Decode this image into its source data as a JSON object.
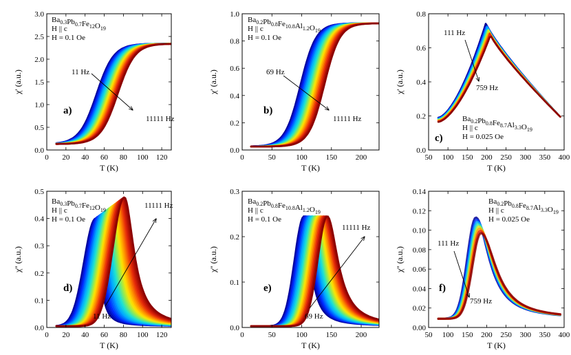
{
  "figure": {
    "description_panels": [
      "a",
      "b",
      "c",
      "d",
      "e",
      "f"
    ]
  },
  "chart_data": [
    {
      "id": "a",
      "type": "line",
      "panel_label": "a)",
      "legend": [
        {
          "main": "Ba",
          "sub": "0.3"
        },
        {
          "main": "Pb",
          "sub": "0.7"
        },
        {
          "main": "Fe",
          "sub": "12"
        },
        {
          "main": "O",
          "sub": "19"
        }
      ],
      "legend_lines": [
        "H || c",
        "H = 0.1 Oe"
      ],
      "xlabel": "T (K)",
      "ylabel": "χ' (a.u.)",
      "xlim": [
        0,
        130
      ],
      "ylim": [
        0,
        3.0
      ],
      "xticks": [
        0,
        20,
        40,
        60,
        80,
        100,
        120
      ],
      "yticks": [
        0.0,
        0.5,
        1.0,
        1.5,
        2.0,
        2.5,
        3.0
      ],
      "ytick_labels": [
        "0.0",
        "0.5",
        "1.0",
        "1.5",
        "2.0",
        "2.5",
        "3.0"
      ],
      "freq_low_label": "11 Hz",
      "freq_high_label": "11111 Hz",
      "curve_model": {
        "kind": "sigmoid",
        "x_start": 10,
        "x_end": 130,
        "base": 0.13,
        "top": 2.34,
        "center_low": 52,
        "center_high": 74,
        "width": 9
      },
      "n_series": 26
    },
    {
      "id": "b",
      "type": "line",
      "panel_label": "b)",
      "legend": [
        {
          "main": "Ba",
          "sub": "0.2"
        },
        {
          "main": "Pb",
          "sub": "0.8"
        },
        {
          "main": "Fe",
          "sub": "10.8"
        },
        {
          "main": "Al",
          "sub": "1.2"
        },
        {
          "main": "O",
          "sub": "19"
        }
      ],
      "legend_lines": [
        "H || c",
        "H = 0.1 Oe"
      ],
      "xlabel": "T (K)",
      "ylabel": "χ' (a.u.)",
      "xlim": [
        0,
        230
      ],
      "ylim": [
        0,
        1.0
      ],
      "xticks": [
        0,
        50,
        100,
        150,
        200
      ],
      "yticks": [
        0.0,
        0.2,
        0.4,
        0.6,
        0.8,
        1.0
      ],
      "ytick_labels": [
        "0.0",
        "0.2",
        "0.4",
        "0.6",
        "0.8",
        "1.0"
      ],
      "freq_low_label": "69 Hz",
      "freq_high_label": "11111 Hz",
      "curve_model": {
        "kind": "sigmoid",
        "x_start": 15,
        "x_end": 230,
        "base": 0.025,
        "top": 0.93,
        "center_low": 98,
        "center_high": 138,
        "width": 13
      },
      "n_series": 26
    },
    {
      "id": "c",
      "type": "line",
      "panel_label": "c)",
      "legend": [
        {
          "main": "Ba",
          "sub": "0.2"
        },
        {
          "main": "Pb",
          "sub": "0.8"
        },
        {
          "main": "Fe",
          "sub": "8.7"
        },
        {
          "main": "Al",
          "sub": "3.3"
        },
        {
          "main": "O",
          "sub": "19"
        }
      ],
      "legend_lines": [
        "H || c",
        "H = 0.025 Oe"
      ],
      "xlabel": "T (K)",
      "ylabel": "χ' (a.u.)",
      "xlim": [
        50,
        400
      ],
      "ylim": [
        0,
        0.8
      ],
      "xticks": [
        50,
        100,
        150,
        200,
        250,
        300,
        350,
        400
      ],
      "yticks": [
        0.0,
        0.2,
        0.4,
        0.6,
        0.8
      ],
      "ytick_labels": [
        "0.0",
        "0.2",
        "0.4",
        "0.6",
        "0.8"
      ],
      "freq_low_label": "111 Hz",
      "freq_high_label": "759 Hz",
      "curve_model": {
        "kind": "cusp",
        "x_start": 75,
        "x_end": 390,
        "peak_x_low": 198,
        "peak_x_high": 210,
        "peak_low": 0.745,
        "peak_high": 0.675,
        "left_low": 0.19,
        "left_high": 0.165,
        "right_end": 0.195
      },
      "n_series": 8
    },
    {
      "id": "d",
      "type": "line",
      "panel_label": "d)",
      "legend": [
        {
          "main": "Ba",
          "sub": "0.3"
        },
        {
          "main": "Pb",
          "sub": "0.7"
        },
        {
          "main": "Fe",
          "sub": "12"
        },
        {
          "main": "O",
          "sub": "19"
        }
      ],
      "legend_lines": [
        "H || c",
        "H = 0.1 Oe"
      ],
      "xlabel": "T (K)",
      "ylabel": "χ'' (a.u.)",
      "xlim": [
        0,
        130
      ],
      "ylim": [
        0,
        0.5
      ],
      "xticks": [
        0,
        20,
        40,
        60,
        80,
        100,
        120
      ],
      "yticks": [
        0.0,
        0.1,
        0.2,
        0.3,
        0.4,
        0.5
      ],
      "ytick_labels": [
        "0.0",
        "0.1",
        "0.2",
        "0.3",
        "0.4",
        "0.5"
      ],
      "freq_low_label": "11 Hz",
      "freq_high_label": "11111 Hz",
      "curve_model": {
        "kind": "peak",
        "x_start": 10,
        "x_end": 130,
        "peak_x_low": 51,
        "peak_x_high": 81,
        "peak_low": 0.4,
        "peak_high": 0.478,
        "wl": 12,
        "wr_low": 5,
        "wr_high": 12,
        "base": 0.005
      },
      "n_series": 26
    },
    {
      "id": "e",
      "type": "line",
      "panel_label": "e)",
      "legend": [
        {
          "main": "Ba",
          "sub": "0.2"
        },
        {
          "main": "Pb",
          "sub": "0.8"
        },
        {
          "main": "Fe",
          "sub": "10.8"
        },
        {
          "main": "Al",
          "sub": "1.2"
        },
        {
          "main": "O",
          "sub": "19"
        }
      ],
      "legend_lines": [
        "H || c",
        "H = 0.1 Oe"
      ],
      "xlabel": "T (K)",
      "ylabel": "χ'' (a.u.)",
      "xlim": [
        0,
        230
      ],
      "ylim": [
        0,
        0.3
      ],
      "xticks": [
        0,
        50,
        100,
        150,
        200
      ],
      "yticks": [
        0.0,
        0.1,
        0.2,
        0.3
      ],
      "ytick_labels": [
        "0.0",
        "0.1",
        "0.2",
        "0.3"
      ],
      "freq_low_label": "69 Hz",
      "freq_high_label": "11111 Hz",
      "curve_model": {
        "kind": "peak",
        "x_start": 15,
        "x_end": 230,
        "peak_x_low": 104,
        "peak_x_high": 143,
        "peak_low": 0.245,
        "peak_high": 0.245,
        "wl": 16,
        "wr_low": 13,
        "wr_high": 22,
        "base": 0.003
      },
      "n_series": 26
    },
    {
      "id": "f",
      "type": "scatter",
      "panel_label": "f)",
      "legend": [
        {
          "main": "Ba",
          "sub": "0.2"
        },
        {
          "main": "Pb",
          "sub": "0.8"
        },
        {
          "main": "Fe",
          "sub": "8.7"
        },
        {
          "main": "Al",
          "sub": "3.3"
        },
        {
          "main": "O",
          "sub": "19"
        }
      ],
      "legend_lines": [
        "H || c",
        "H = 0.025 Oe"
      ],
      "xlabel": "T (K)",
      "ylabel": "χ'' (a.u.)",
      "xlim": [
        50,
        400
      ],
      "ylim": [
        0,
        0.14
      ],
      "xticks": [
        50,
        100,
        150,
        200,
        250,
        300,
        350,
        400
      ],
      "yticks": [
        0.0,
        0.02,
        0.04,
        0.06,
        0.08,
        0.1,
        0.12,
        0.14
      ],
      "ytick_labels": [
        "0.00",
        "0.02",
        "0.04",
        "0.06",
        "0.08",
        "0.10",
        "0.12",
        "0.14"
      ],
      "freq_low_label": "111 Hz",
      "freq_high_label": "759 Hz",
      "curve_model": {
        "kind": "peak",
        "x_start": 75,
        "x_end": 390,
        "peak_x_low": 172,
        "peak_x_high": 185,
        "peak_low": 0.113,
        "peak_high": 0.097,
        "wl": 22,
        "wr_low": 42,
        "wr_high": 48,
        "base": 0.009
      },
      "n_series": 8
    }
  ]
}
